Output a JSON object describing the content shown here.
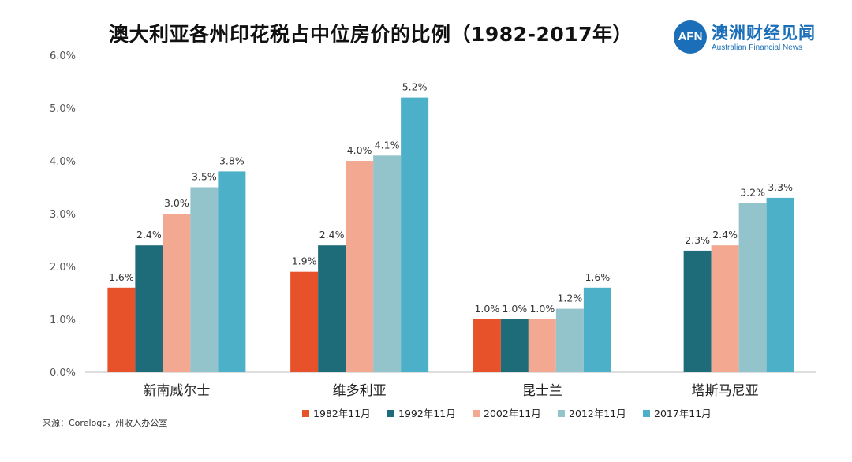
{
  "title": "澳大利亚各州印花税占中位房价的比例（1982-2017年）",
  "logo": {
    "badge": "AFN",
    "name_cn": "澳洲财经见闻",
    "name_en": "Australian Financial News"
  },
  "source": "来源：Corelogc，州收入办公室",
  "chart_data": {
    "type": "bar",
    "categories": [
      "新南威尔士",
      "维多利亚",
      "昆士兰",
      "塔斯马尼亚"
    ],
    "series": [
      {
        "name": "1982年11月",
        "color": "#e8522a",
        "values": [
          1.6,
          1.9,
          1.0,
          null
        ],
        "labels": [
          "1.6%",
          "1.9%",
          "1.0%",
          ""
        ]
      },
      {
        "name": "1992年11月",
        "color": "#1e6c79",
        "values": [
          2.4,
          2.4,
          1.0,
          2.3
        ],
        "labels": [
          "2.4%",
          "2.4%",
          "1.0%",
          "2.3%"
        ]
      },
      {
        "name": "2002年11月",
        "color": "#f2a891",
        "values": [
          3.0,
          4.0,
          1.0,
          2.4
        ],
        "labels": [
          "3.0%",
          "4.0%",
          "1.0%",
          "2.4%"
        ]
      },
      {
        "name": "2012年11月",
        "color": "#94c4cb",
        "values": [
          3.5,
          4.1,
          1.2,
          3.2
        ],
        "labels": [
          "3.5%",
          "4.1%",
          "1.2%",
          "3.2%"
        ]
      },
      {
        "name": "2017年11月",
        "color": "#4cb0c9",
        "values": [
          3.8,
          5.2,
          1.6,
          3.3
        ],
        "labels": [
          "3.8%",
          "5.2%",
          "1.6%",
          "3.3%"
        ]
      }
    ],
    "y_ticks": [
      "0.0%",
      "1.0%",
      "2.0%",
      "3.0%",
      "4.0%",
      "5.0%",
      "6.0%"
    ],
    "ylim": [
      0,
      6
    ],
    "grid": false,
    "legend_position": "bottom"
  }
}
